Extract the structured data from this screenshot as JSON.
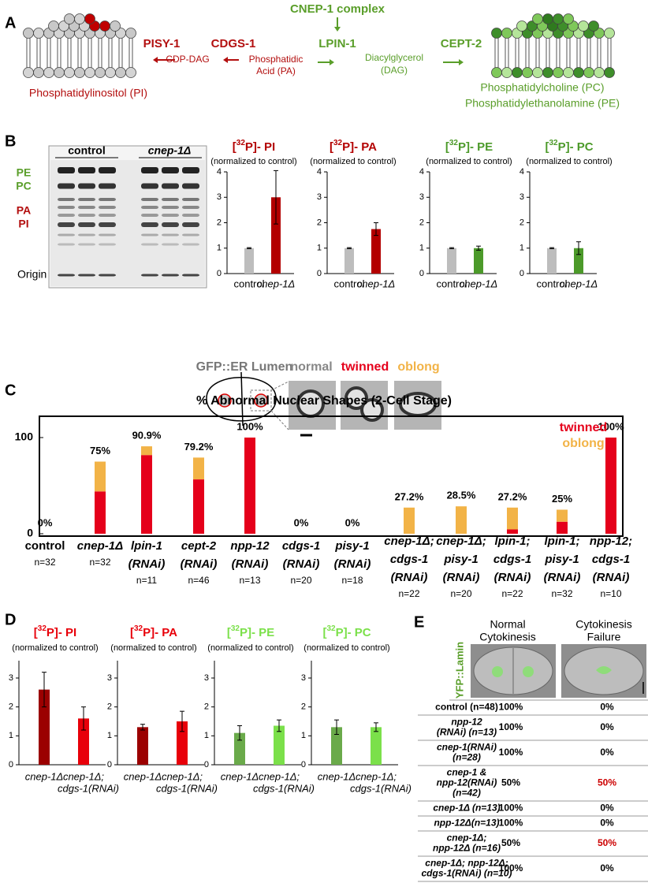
{
  "panel_labels": [
    "A",
    "B",
    "C",
    "D",
    "E"
  ],
  "panel_a": {
    "pisy": "PISY-1",
    "cdgs": "CDGS-1",
    "cdp_dag": "CDP-DAG",
    "pa": [
      "Phosphatidic",
      "Acid (PA)"
    ],
    "complex": "CNEP-1 complex",
    "lpin": "LPIN-1",
    "dag": [
      "Diacylglycerol",
      "(DAG)"
    ],
    "cept": "CEPT-2",
    "pi": "Phosphatidylinositol (PI)",
    "pc": "Phosphatidylcholine (PC)",
    "pe": "Phosphatidylethanolamine (PE)"
  },
  "panel_b_blot": {
    "groups": [
      "control",
      "cnep-1Δ"
    ],
    "lipids": [
      "PE",
      "PC",
      "PA",
      "PI"
    ],
    "origin": "Origin"
  },
  "panel_c_schematic": {
    "marker": "GFP::ER Lumen",
    "shapes": [
      "normal",
      "twinned",
      "oblong"
    ]
  },
  "chart_data": [
    {
      "type": "bar",
      "title": [
        "[",
        "32",
        "P]- PI"
      ],
      "subtitle": "(normalized to control)",
      "categories": [
        [
          "control"
        ],
        [
          "cnep-1Δ"
        ]
      ],
      "values": [
        1,
        3.0
      ],
      "errors": [
        0.02,
        1.05
      ],
      "colors": [
        "#bdbdbd",
        "#b30000"
      ],
      "ylim": [
        0,
        4
      ],
      "yticks": [
        0,
        1,
        2,
        3,
        4
      ]
    },
    {
      "type": "bar",
      "title": [
        "[",
        "32",
        "P]- PA"
      ],
      "subtitle": "(normalized to control)",
      "categories": [
        [
          "control"
        ],
        [
          "cnep-1Δ"
        ]
      ],
      "values": [
        1,
        1.75
      ],
      "errors": [
        0.02,
        0.25
      ],
      "colors": [
        "#bdbdbd",
        "#b30000"
      ],
      "ylim": [
        0,
        4
      ],
      "yticks": [
        0,
        1,
        2,
        3,
        4
      ]
    },
    {
      "type": "bar",
      "title": [
        "[",
        "32",
        "P]- PE"
      ],
      "subtitle": "(normalized to control)",
      "categories": [
        [
          "control"
        ],
        [
          "cnep-1Δ"
        ]
      ],
      "values": [
        1,
        1.0
      ],
      "errors": [
        0.02,
        0.08
      ],
      "colors": [
        "#bdbdbd",
        "#4c9a2a"
      ],
      "ylim": [
        0,
        4
      ],
      "yticks": [
        0,
        1,
        2,
        3,
        4
      ]
    },
    {
      "type": "bar",
      "title": [
        "[",
        "32",
        "P]- PC"
      ],
      "subtitle": "(normalized to control)",
      "categories": [
        [
          "control"
        ],
        [
          "cnep-1Δ"
        ]
      ],
      "values": [
        1,
        1.0
      ],
      "errors": [
        0.02,
        0.25
      ],
      "colors": [
        "#bdbdbd",
        "#4c9a2a"
      ],
      "ylim": [
        0,
        4
      ],
      "yticks": [
        0,
        1,
        2,
        3,
        4
      ]
    },
    {
      "type": "stacked_bar",
      "title": "% Abnormal Nuclear Shapes (2-Cell Stage)",
      "categories": [
        [
          "control"
        ],
        [
          "cnep-1Δ"
        ],
        [
          "lpin-1",
          "(RNAi)"
        ],
        [
          "cept-2",
          "(RNAi)"
        ],
        [
          "npp-12",
          "(RNAi)"
        ],
        [
          "cdgs-1",
          "(RNAi)"
        ],
        [
          "pisy-1",
          "(RNAi)"
        ],
        [
          "cnep-1Δ;",
          "cdgs-1",
          "(RNAi)"
        ],
        [
          "cnep-1Δ;",
          "pisy-1",
          "(RNAi)"
        ],
        [
          "lpin-1;",
          "cdgs-1",
          "(RNAi)"
        ],
        [
          "lpin-1;",
          "pisy-1",
          "(RNAi)"
        ],
        [
          "npp-12;",
          "cdgs-1",
          "(RNAi)"
        ]
      ],
      "n_labels": [
        "n=32",
        "n=32",
        "n=11",
        "n=46",
        "n=13",
        "n=20",
        "n=18",
        "n=22",
        "n=20",
        "n=22",
        "n=32",
        "n=10"
      ],
      "series": [
        {
          "name": "twinned",
          "color": "#e5001b",
          "values": [
            0,
            44,
            81.8,
            56.5,
            100,
            0,
            0,
            0,
            0,
            4.5,
            12.5,
            100
          ]
        },
        {
          "name": "oblong",
          "color": "#f2b347",
          "values": [
            0,
            31,
            9.1,
            22.7,
            0,
            0,
            0,
            27.2,
            28.5,
            22.7,
            12.5,
            0
          ]
        }
      ],
      "totals": [
        0,
        75,
        90.9,
        79.2,
        100,
        0,
        0,
        27.2,
        28.5,
        27.2,
        25,
        100
      ],
      "total_labels": [
        "0%",
        "75%",
        "90.9%",
        "79.2%",
        "100%",
        "0%",
        "0%",
        "27.2%",
        "28.5%",
        "27.2%",
        "25%",
        "100%"
      ],
      "ylim": [
        0,
        100
      ],
      "yticks": [
        0,
        100
      ],
      "legend": "upper right"
    },
    {
      "type": "bar",
      "title": [
        "[",
        "32",
        "P]- PI"
      ],
      "subtitle": "(normalized to control)",
      "categories": [
        [
          "cnep-1Δ"
        ],
        [
          "cnep-1Δ;",
          "cdgs-1(RNAi)"
        ]
      ],
      "values": [
        2.6,
        1.6
      ],
      "errors": [
        0.6,
        0.4
      ],
      "colors": [
        "#9b0000",
        "#e8000a"
      ],
      "ylim": [
        0,
        3.6
      ],
      "yticks": [
        0,
        1,
        2,
        3
      ]
    },
    {
      "type": "bar",
      "title": [
        "[",
        "32",
        "P]- PA"
      ],
      "subtitle": "(normalized to control)",
      "categories": [
        [
          "cnep-1Δ"
        ],
        [
          "cnep-1Δ;",
          "cdgs-1(RNAi)"
        ]
      ],
      "values": [
        1.3,
        1.5
      ],
      "errors": [
        0.1,
        0.35
      ],
      "colors": [
        "#9b0000",
        "#e8000a"
      ],
      "ylim": [
        0,
        3.6
      ],
      "yticks": [
        0,
        1,
        2,
        3
      ]
    },
    {
      "type": "bar",
      "title": [
        "[",
        "32",
        "P]- PE"
      ],
      "subtitle": "(normalized to control)",
      "categories": [
        [
          "cnep-1Δ"
        ],
        [
          "cnep-1Δ;",
          "cdgs-1(RNAi)"
        ]
      ],
      "values": [
        1.1,
        1.35
      ],
      "errors": [
        0.25,
        0.2
      ],
      "colors": [
        "#6aaa4a",
        "#7be04a"
      ],
      "ylim": [
        0,
        3.6
      ],
      "yticks": [
        0,
        1,
        2,
        3
      ]
    },
    {
      "type": "bar",
      "title": [
        "[",
        "32",
        "P]- PC"
      ],
      "subtitle": "(normalized to control)",
      "categories": [
        [
          "cnep-1Δ"
        ],
        [
          "cnep-1Δ;",
          "cdgs-1(RNAi)"
        ]
      ],
      "values": [
        1.3,
        1.3
      ],
      "errors": [
        0.25,
        0.15
      ],
      "colors": [
        "#6aaa4a",
        "#7be04a"
      ],
      "ylim": [
        0,
        3.6
      ],
      "yticks": [
        0,
        1,
        2,
        3
      ]
    }
  ],
  "panel_e": {
    "stain": "YFP::Lamin",
    "columns": [
      [
        "Normal",
        "Cytokinesis"
      ],
      [
        "Cytokinesis",
        "Failure"
      ]
    ],
    "rows": [
      {
        "label": [
          "control (n=48)"
        ],
        "cells": [
          "100%",
          "0%"
        ],
        "colors": [
          "#000",
          "#000"
        ]
      },
      {
        "label": [
          "npp-12",
          "(RNAi) (n=13)"
        ],
        "cells": [
          "100%",
          "0%"
        ],
        "colors": [
          "#000",
          "#000"
        ]
      },
      {
        "label": [
          "cnep-1(RNAi)",
          "(n=28)"
        ],
        "cells": [
          "100%",
          "0%"
        ],
        "colors": [
          "#000",
          "#000"
        ]
      },
      {
        "label": [
          "cnep-1 &",
          "npp-12(RNAi)",
          "(n=42)"
        ],
        "cells": [
          "50%",
          "50%"
        ],
        "colors": [
          "#000",
          "#cc0000"
        ]
      },
      {
        "label": [
          "cnep-1Δ (n=13)"
        ],
        "cells": [
          "100%",
          "0%"
        ],
        "colors": [
          "#000",
          "#000"
        ]
      },
      {
        "label": [
          "npp-12Δ(n=13)"
        ],
        "cells": [
          "100%",
          "0%"
        ],
        "colors": [
          "#000",
          "#000"
        ]
      },
      {
        "label": [
          "cnep-1Δ;",
          "npp-12Δ (n=16)"
        ],
        "cells": [
          "50%",
          "50%"
        ],
        "colors": [
          "#000",
          "#cc0000"
        ]
      },
      {
        "label": [
          "cnep-1Δ; npp-12Δ;",
          "cdgs-1(RNAi) (n=10)"
        ],
        "cells": [
          "100%",
          "0%"
        ],
        "colors": [
          "#000",
          "#000"
        ]
      }
    ]
  }
}
